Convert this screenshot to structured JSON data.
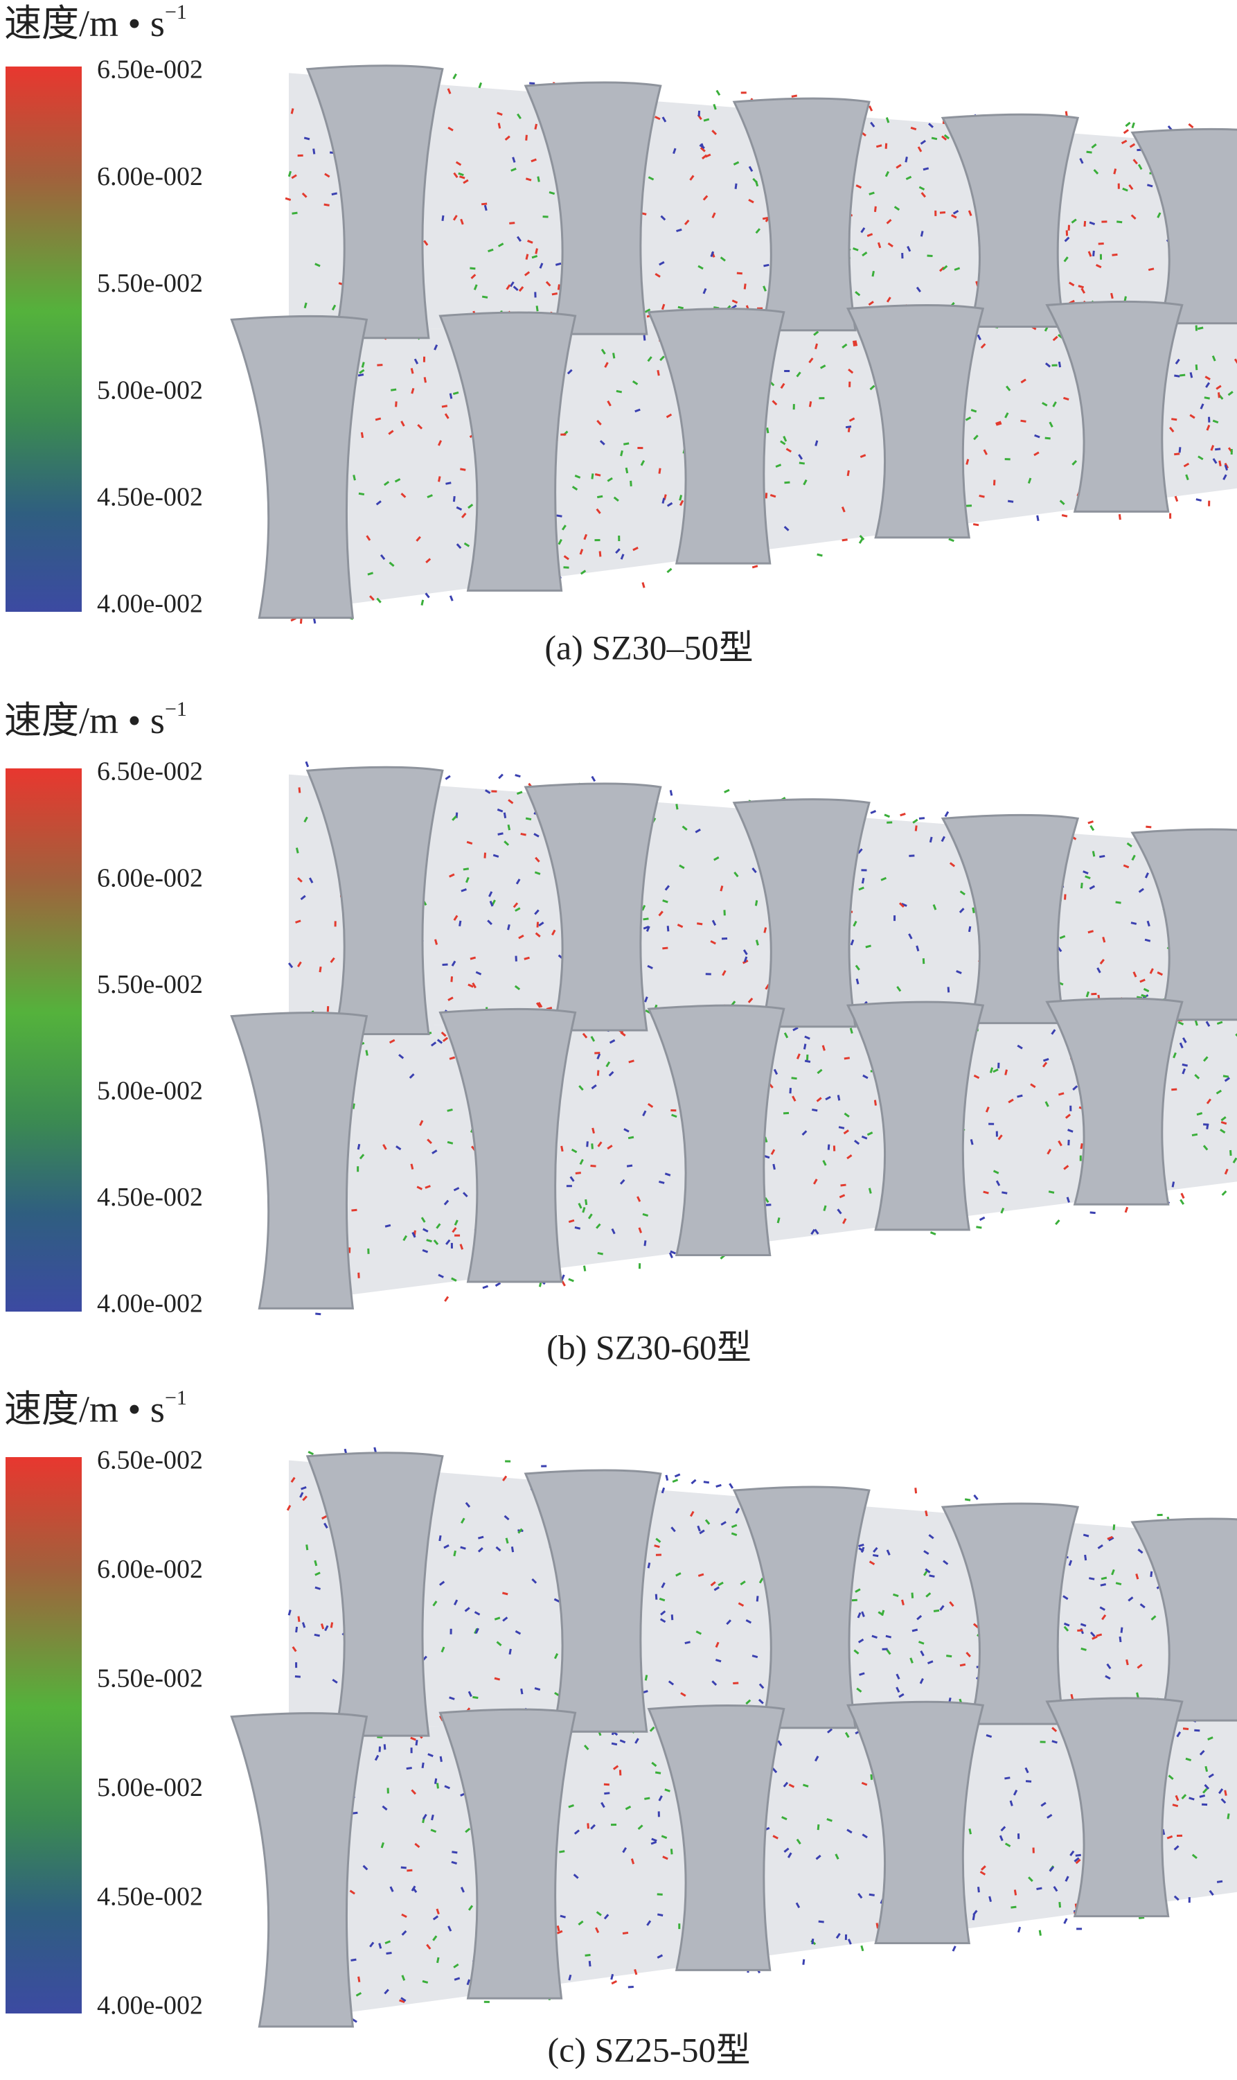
{
  "panels": [
    {
      "legend_title": "速度/m • s",
      "legend_exponent": "−1",
      "colorbar_ticks": [
        "6.50e-002",
        "6.00e-002",
        "5.50e-002",
        "5.00e-002",
        "4.50e-002",
        "4.00e-002"
      ],
      "caption": "(a) SZ30–50型"
    },
    {
      "legend_title": "速度/m • s",
      "legend_exponent": "−1",
      "colorbar_ticks": [
        "6.50e-002",
        "6.00e-002",
        "5.50e-002",
        "5.00e-002",
        "4.50e-002",
        "4.00e-002"
      ],
      "caption": "(b) SZ30-60型"
    },
    {
      "legend_title": "速度/m • s",
      "legend_exponent": "−1",
      "colorbar_ticks": [
        "6.50e-002",
        "6.00e-002",
        "5.50e-002",
        "5.00e-002",
        "4.50e-002",
        "4.00e-002"
      ],
      "caption": "(c) SZ25-50型"
    }
  ]
}
